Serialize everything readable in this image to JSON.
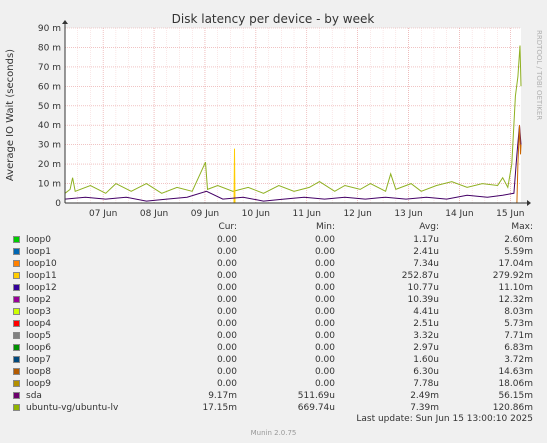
{
  "chart_data": {
    "type": "line",
    "title": "Disk latency per device - by week",
    "ylabel": "Average IO Wait (seconds)",
    "watermark": "RRDTOOL / TOBI OETIKER",
    "y_ticks": [
      "0",
      "10 m",
      "20 m",
      "30 m",
      "40 m",
      "50 m",
      "60 m",
      "70 m",
      "80 m",
      "90 m"
    ],
    "ylim": [
      0,
      0.09
    ],
    "x_ticks": [
      "07 Jun",
      "08 Jun",
      "09 Jun",
      "10 Jun",
      "11 Jun",
      "12 Jun",
      "13 Jun",
      "14 Jun",
      "15 Jun"
    ],
    "x_tick_days": [
      0.75,
      1.75,
      2.75,
      3.75,
      4.75,
      5.75,
      6.75,
      7.75,
      8.75
    ],
    "xlim_days": [
      0,
      8.96
    ],
    "grid": true,
    "series_visible": [
      {
        "name": "ubuntu-vg/ubuntu-lv",
        "color": "#8fb021",
        "points": [
          [
            0.0,
            0.005
          ],
          [
            0.1,
            0.007
          ],
          [
            0.15,
            0.013
          ],
          [
            0.2,
            0.006
          ],
          [
            0.5,
            0.009
          ],
          [
            0.8,
            0.005
          ],
          [
            1.0,
            0.01
          ],
          [
            1.3,
            0.006
          ],
          [
            1.6,
            0.01
          ],
          [
            1.9,
            0.005
          ],
          [
            2.2,
            0.008
          ],
          [
            2.5,
            0.006
          ],
          [
            2.76,
            0.021
          ],
          [
            2.8,
            0.007
          ],
          [
            3.0,
            0.009
          ],
          [
            3.3,
            0.006
          ],
          [
            3.6,
            0.008
          ],
          [
            3.9,
            0.005
          ],
          [
            4.2,
            0.009
          ],
          [
            4.5,
            0.006
          ],
          [
            4.8,
            0.008
          ],
          [
            5.0,
            0.011
          ],
          [
            5.3,
            0.006
          ],
          [
            5.5,
            0.009
          ],
          [
            5.8,
            0.007
          ],
          [
            6.0,
            0.01
          ],
          [
            6.3,
            0.006
          ],
          [
            6.4,
            0.015
          ],
          [
            6.5,
            0.007
          ],
          [
            6.8,
            0.01
          ],
          [
            7.0,
            0.006
          ],
          [
            7.3,
            0.009
          ],
          [
            7.6,
            0.011
          ],
          [
            7.9,
            0.008
          ],
          [
            8.2,
            0.01
          ],
          [
            8.5,
            0.009
          ],
          [
            8.6,
            0.013
          ],
          [
            8.7,
            0.008
          ],
          [
            8.78,
            0.02
          ],
          [
            8.85,
            0.055
          ],
          [
            8.9,
            0.065
          ],
          [
            8.94,
            0.081
          ],
          [
            8.96,
            0.06
          ]
        ]
      },
      {
        "name": "loop11",
        "color": "#ffcc00",
        "points": [
          [
            3.32,
            0.0
          ],
          [
            3.33,
            0.028
          ],
          [
            3.34,
            0.0
          ]
        ]
      },
      {
        "name": "sda",
        "color": "#440066",
        "points": [
          [
            0.0,
            0.002
          ],
          [
            0.4,
            0.003
          ],
          [
            0.8,
            0.002
          ],
          [
            1.2,
            0.003
          ],
          [
            1.6,
            0.001
          ],
          [
            2.0,
            0.002
          ],
          [
            2.4,
            0.003
          ],
          [
            2.78,
            0.006
          ],
          [
            3.1,
            0.002
          ],
          [
            3.5,
            0.003
          ],
          [
            3.9,
            0.001
          ],
          [
            4.3,
            0.002
          ],
          [
            4.7,
            0.003
          ],
          [
            5.1,
            0.002
          ],
          [
            5.5,
            0.003
          ],
          [
            5.9,
            0.002
          ],
          [
            6.3,
            0.003
          ],
          [
            6.7,
            0.002
          ],
          [
            7.1,
            0.003
          ],
          [
            7.5,
            0.002
          ],
          [
            7.9,
            0.004
          ],
          [
            8.3,
            0.003
          ],
          [
            8.6,
            0.004
          ],
          [
            8.82,
            0.005
          ],
          [
            8.88,
            0.025
          ],
          [
            8.93,
            0.04
          ],
          [
            8.96,
            0.03
          ]
        ]
      },
      {
        "name": "loop8",
        "color": "#cc6600",
        "points": [
          [
            8.88,
            0.0
          ],
          [
            8.9,
            0.02
          ],
          [
            8.93,
            0.04
          ],
          [
            8.95,
            0.025
          ],
          [
            8.96,
            0.03
          ]
        ]
      }
    ],
    "legend_headers": {
      "cur": "Cur:",
      "min": "Min:",
      "avg": "Avg:",
      "max": "Max:"
    },
    "legend": [
      {
        "name": "loop0",
        "color": "#00cc00",
        "cur": "0.00",
        "min": "0.00",
        "avg": "1.17u",
        "max": "2.60m"
      },
      {
        "name": "loop1",
        "color": "#0066b3",
        "cur": "0.00",
        "min": "0.00",
        "avg": "2.41u",
        "max": "5.59m"
      },
      {
        "name": "loop10",
        "color": "#ff8000",
        "cur": "0.00",
        "min": "0.00",
        "avg": "7.34u",
        "max": "17.04m"
      },
      {
        "name": "loop11",
        "color": "#ffcc00",
        "cur": "0.00",
        "min": "0.00",
        "avg": "252.87u",
        "max": "279.92m"
      },
      {
        "name": "loop12",
        "color": "#330099",
        "cur": "0.00",
        "min": "0.00",
        "avg": "10.77u",
        "max": "11.10m"
      },
      {
        "name": "loop2",
        "color": "#990099",
        "cur": "0.00",
        "min": "0.00",
        "avg": "10.39u",
        "max": "12.32m"
      },
      {
        "name": "loop3",
        "color": "#ccff00",
        "cur": "0.00",
        "min": "0.00",
        "avg": "4.41u",
        "max": "8.03m"
      },
      {
        "name": "loop4",
        "color": "#ff0000",
        "cur": "0.00",
        "min": "0.00",
        "avg": "2.51u",
        "max": "5.73m"
      },
      {
        "name": "loop5",
        "color": "#808080",
        "cur": "0.00",
        "min": "0.00",
        "avg": "3.32u",
        "max": "7.71m"
      },
      {
        "name": "loop6",
        "color": "#008f00",
        "cur": "0.00",
        "min": "0.00",
        "avg": "2.97u",
        "max": "6.83m"
      },
      {
        "name": "loop7",
        "color": "#00487d",
        "cur": "0.00",
        "min": "0.00",
        "avg": "1.60u",
        "max": "3.72m"
      },
      {
        "name": "loop8",
        "color": "#b35a00",
        "cur": "0.00",
        "min": "0.00",
        "avg": "6.30u",
        "max": "14.63m"
      },
      {
        "name": "loop9",
        "color": "#b38f00",
        "cur": "0.00",
        "min": "0.00",
        "avg": "7.78u",
        "max": "18.06m"
      },
      {
        "name": "sda",
        "color": "#6b006b",
        "cur": "9.17m",
        "min": "511.69u",
        "avg": "2.49m",
        "max": "56.15m"
      },
      {
        "name": "ubuntu-vg/ubuntu-lv",
        "color": "#8fb300",
        "cur": "17.15m",
        "min": "669.74u",
        "avg": "7.39m",
        "max": "120.86m"
      }
    ],
    "last_update": "Last update:  Sun Jun 15 13:00:10 2025",
    "footer": "Munin 2.0.75"
  }
}
